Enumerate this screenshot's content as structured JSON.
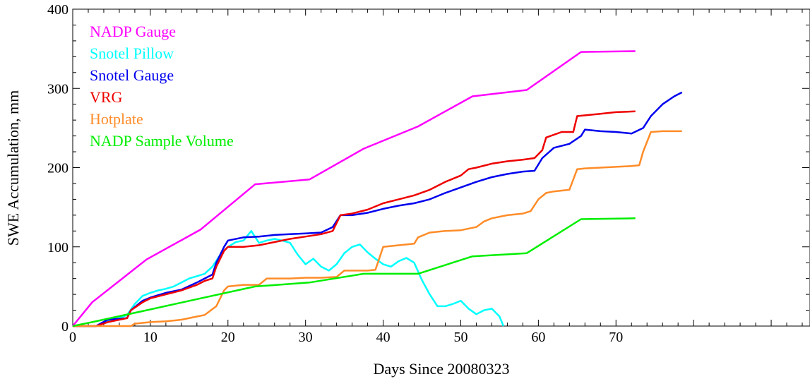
{
  "chart_data": {
    "type": "line",
    "xlabel": "Days Since 20080323",
    "ylabel": "SWE Accumulation, mm",
    "xlim": [
      0,
      95
    ],
    "ylim": [
      0,
      400
    ],
    "xticks": [
      0,
      10,
      20,
      30,
      40,
      50,
      60,
      70
    ],
    "yticks": [
      0,
      100,
      200,
      300,
      400
    ],
    "grid": false,
    "legend_position": "top-left",
    "series": [
      {
        "name": "NADP Gauge",
        "color": "#ff00ff",
        "x": [
          0,
          2.5,
          9.5,
          16.5,
          23.5,
          30.5,
          37.5,
          44.5,
          51.5,
          58.5,
          65.5,
          72.5
        ],
        "y": [
          0,
          30,
          84,
          122,
          179,
          185,
          224,
          252,
          290,
          298,
          346,
          347
        ]
      },
      {
        "name": "Snotel Pillow",
        "color": "#00ffff",
        "x": [
          0,
          3,
          5,
          6,
          7,
          8,
          9,
          10,
          11,
          12,
          13,
          14,
          15,
          16,
          17,
          18,
          19,
          20,
          21,
          22,
          23,
          24,
          25,
          26,
          27,
          28,
          29,
          30,
          31,
          32,
          33,
          34,
          35,
          36,
          37,
          38,
          39,
          40,
          41,
          42,
          43,
          44,
          45,
          46,
          47,
          48,
          49,
          50,
          51,
          52,
          53,
          54,
          55,
          55.5
        ],
        "y": [
          0,
          0,
          8,
          10,
          14,
          28,
          38,
          42,
          45,
          47,
          50,
          55,
          60,
          63,
          66,
          75,
          90,
          100,
          106,
          108,
          120,
          105,
          108,
          110,
          108,
          105,
          90,
          78,
          85,
          75,
          70,
          78,
          92,
          100,
          103,
          93,
          85,
          78,
          75,
          82,
          86,
          80,
          58,
          40,
          25,
          25,
          28,
          32,
          22,
          15,
          20,
          22,
          12,
          0
        ]
      },
      {
        "name": "Snotel Gauge",
        "color": "#0000ee",
        "x": [
          0,
          3,
          4.5,
          7,
          7.5,
          9,
          10,
          12,
          14,
          16,
          17,
          18,
          18.5,
          19,
          19.5,
          20,
          22,
          24,
          26,
          28,
          30,
          32,
          33.5,
          34.5,
          36,
          38,
          40,
          42,
          44,
          46,
          48,
          50,
          52,
          54,
          56,
          58,
          59.5,
          60.5,
          62,
          64,
          65.5,
          66,
          68,
          70,
          72,
          73.5,
          74.5,
          76,
          77.5,
          78.5
        ],
        "y": [
          0,
          0,
          8,
          10,
          20,
          32,
          36,
          42,
          46,
          55,
          60,
          65,
          80,
          90,
          100,
          108,
          112,
          113,
          115,
          116,
          117,
          118,
          125,
          140,
          140,
          143,
          148,
          152,
          155,
          160,
          168,
          175,
          182,
          188,
          192,
          195,
          196,
          212,
          225,
          230,
          240,
          248,
          246,
          245,
          243,
          250,
          265,
          280,
          290,
          295
        ]
      },
      {
        "name": "VRG",
        "color": "#ee0000",
        "x": [
          0,
          3,
          4.5,
          7,
          7.5,
          9,
          10,
          12,
          14,
          16,
          17,
          18,
          18.5,
          19,
          19.5,
          20,
          22,
          24,
          26,
          28,
          30,
          32,
          33.5,
          34.5,
          36,
          38,
          40,
          42,
          44,
          46,
          48,
          50,
          51,
          52,
          54,
          56,
          58,
          59.5,
          60.5,
          61,
          63,
          64.5,
          65,
          68,
          70,
          72.5
        ],
        "y": [
          0,
          0,
          5,
          10,
          20,
          30,
          35,
          40,
          45,
          52,
          57,
          60,
          75,
          85,
          95,
          100,
          100,
          102,
          106,
          110,
          113,
          116,
          120,
          140,
          142,
          147,
          155,
          160,
          165,
          172,
          182,
          190,
          198,
          200,
          205,
          208,
          210,
          212,
          222,
          238,
          245,
          245,
          265,
          268,
          270,
          271
        ]
      },
      {
        "name": "Hotplate",
        "color": "#ff8c28",
        "x": [
          0,
          3,
          5,
          7.5,
          8,
          10,
          12,
          14,
          16,
          17,
          18.5,
          19,
          19.5,
          20,
          22,
          24,
          25,
          26,
          28,
          30,
          32,
          34,
          35,
          36,
          38,
          39,
          40,
          42,
          44,
          44.5,
          46,
          48,
          50,
          52,
          53,
          54,
          56,
          58,
          59,
          60,
          61,
          62,
          64,
          64.5,
          65,
          66,
          68,
          70,
          72,
          73,
          73.5,
          74.5,
          76,
          78.5
        ],
        "y": [
          0,
          0,
          0,
          0,
          3,
          5,
          6,
          8,
          12,
          14,
          25,
          35,
          45,
          50,
          52,
          52,
          60,
          60,
          60,
          61,
          61,
          62,
          70,
          70,
          70,
          71,
          100,
          102,
          104,
          112,
          118,
          120,
          121,
          125,
          132,
          136,
          140,
          142,
          145,
          160,
          168,
          170,
          172,
          185,
          198,
          199,
          200,
          201,
          202,
          203,
          220,
          245,
          246,
          246
        ]
      },
      {
        "name": "NADP Sample Volume",
        "color": "#00ee00",
        "x": [
          0,
          2.5,
          9.5,
          16.5,
          23.5,
          30.5,
          37.5,
          44.5,
          51.5,
          58.5,
          65.5,
          72.5
        ],
        "y": [
          0,
          5,
          20,
          35,
          50,
          55,
          66,
          66,
          88,
          92,
          135,
          136
        ]
      }
    ]
  }
}
